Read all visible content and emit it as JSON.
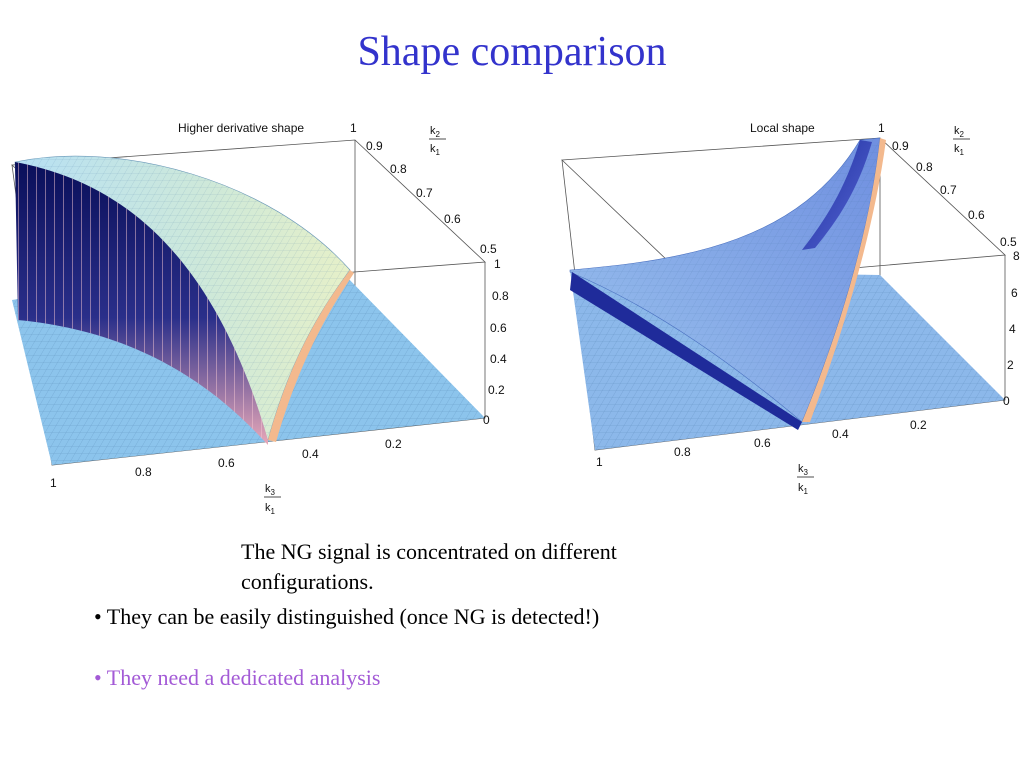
{
  "slide": {
    "title": "Shape comparison",
    "caption": "The NG signal is concentrated on different configurations.",
    "bullets": [
      "• They can be easily distinguished (once NG is detected!)",
      "• They need a dedicated analysis"
    ],
    "colors": {
      "title": "#3333cc",
      "bullet_highlight": "#a35ad6"
    }
  },
  "chart_data": [
    {
      "type": "surface3d",
      "title": "Higher derivative  shape",
      "x_axis": {
        "label_num": "k",
        "label_num_sub": "3",
        "label_den": "k",
        "label_den_sub": "1",
        "ticks": [
          "1",
          "0.8",
          "0.6",
          "0.4",
          "0.2"
        ]
      },
      "y_axis": {
        "label_num": "k",
        "label_num_sub": "2",
        "label_den": "k",
        "label_den_sub": "1",
        "ticks": [
          "1",
          "0.9",
          "0.8",
          "0.7",
          "0.6",
          "0.5"
        ]
      },
      "z_axis": {
        "ticks": [
          "1",
          "0.8",
          "0.6",
          "0.4",
          "0.2",
          "0"
        ],
        "range": [
          0,
          1
        ]
      },
      "colors": {
        "surface": "#9cd0ea",
        "ridge": "#1a1f7a",
        "accent": "#f0b48c"
      }
    },
    {
      "type": "surface3d",
      "title": "Local  shape",
      "x_axis": {
        "label_num": "k",
        "label_num_sub": "3",
        "label_den": "k",
        "label_den_sub": "1",
        "ticks": [
          "1",
          "0.8",
          "0.6",
          "0.4",
          "0.2"
        ]
      },
      "y_axis": {
        "label_num": "k",
        "label_num_sub": "2",
        "label_den": "k",
        "label_den_sub": "1",
        "ticks": [
          "1",
          "0.9",
          "0.8",
          "0.7",
          "0.6",
          "0.5"
        ]
      },
      "z_axis": {
        "ticks": [
          "8",
          "6",
          "4",
          "2",
          "0"
        ],
        "range": [
          0,
          8
        ]
      },
      "colors": {
        "surface": "#8ab4e8",
        "ridge": "#2a3aa8",
        "accent": "#f0b48c"
      }
    }
  ]
}
